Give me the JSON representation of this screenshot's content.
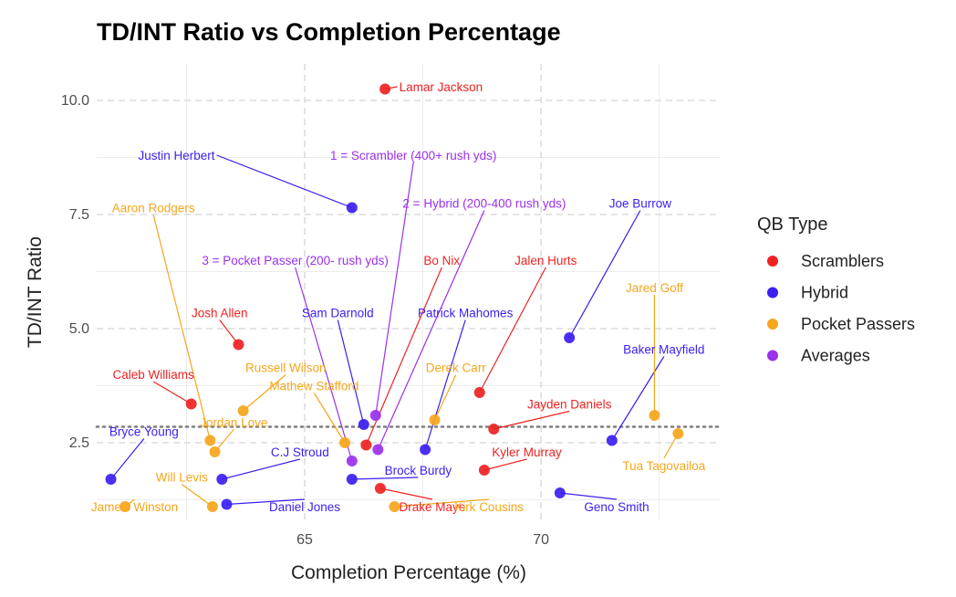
{
  "chart_data": {
    "type": "scatter",
    "title": "TD/INT Ratio vs Completion Percentage",
    "xlabel": "Completion Percentage (%)",
    "ylabel": "TD/INT Ratio",
    "xlim": [
      60.6,
      73.8
    ],
    "ylim": [
      0.8,
      10.8
    ],
    "x_ticks": [
      65,
      70
    ],
    "x_tick_labels": [
      "65",
      "70"
    ],
    "y_ticks": [
      2.5,
      5.0,
      7.5,
      10.0
    ],
    "y_tick_labels": [
      "2.5",
      "5.0",
      "7.5",
      "10.0"
    ],
    "grid": true,
    "reference_line": {
      "y": 2.85,
      "style": "dotted"
    },
    "legend": {
      "title": "QB Type",
      "position": "right",
      "items": [
        {
          "label": "Scramblers",
          "color": "#ee2222"
        },
        {
          "label": "Hybrid",
          "color": "#3b1ff0"
        },
        {
          "label": "Pocket Passers",
          "color": "#f5a61b"
        },
        {
          "label": "Averages",
          "color": "#9b30ee"
        }
      ]
    },
    "groups": {
      "Scramblers": "#ee2222",
      "Hybrid": "#3b1ff0",
      "Pocket Passers": "#f5a61b",
      "Averages": "#9b30ee"
    },
    "points": [
      {
        "label": "Lamar Jackson",
        "group": "Scramblers",
        "x": 66.7,
        "y": 10.25,
        "lx": 67.0,
        "ly": 10.3,
        "anchor": "start"
      },
      {
        "label": "Josh Allen",
        "group": "Scramblers",
        "x": 63.6,
        "y": 4.65,
        "lx": 63.2,
        "ly": 5.35,
        "anchor": "middle"
      },
      {
        "label": "Caleb Williams",
        "group": "Scramblers",
        "x": 62.6,
        "y": 3.35,
        "lx": 61.8,
        "ly": 4.0,
        "anchor": "middle"
      },
      {
        "label": "Jalen Hurts",
        "group": "Scramblers",
        "x": 68.7,
        "y": 3.6,
        "lx": 70.1,
        "ly": 6.5,
        "anchor": "middle"
      },
      {
        "label": "Jayden Daniels",
        "group": "Scramblers",
        "x": 69.0,
        "y": 2.8,
        "lx": 70.6,
        "ly": 3.35,
        "anchor": "middle"
      },
      {
        "label": "Bo Nix",
        "group": "Scramblers",
        "x": 66.3,
        "y": 2.45,
        "lx": 67.9,
        "ly": 6.5,
        "anchor": "middle"
      },
      {
        "label": "Kyler Murray",
        "group": "Scramblers",
        "x": 68.8,
        "y": 1.9,
        "lx": 69.7,
        "ly": 2.3,
        "anchor": "middle"
      },
      {
        "label": "Drake Maye",
        "group": "Scramblers",
        "x": 66.6,
        "y": 1.5,
        "lx": 67.7,
        "ly": 1.1,
        "anchor": "middle"
      },
      {
        "label": "Justin Herbert",
        "group": "Hybrid",
        "x": 66.0,
        "y": 7.65,
        "lx": 63.1,
        "ly": 8.8,
        "anchor": "end"
      },
      {
        "label": "Joe Burrow",
        "group": "Hybrid",
        "x": 70.6,
        "y": 4.8,
        "lx": 72.1,
        "ly": 7.75,
        "anchor": "middle"
      },
      {
        "label": "Sam Darnold",
        "group": "Hybrid",
        "x": 66.25,
        "y": 2.9,
        "lx": 65.7,
        "ly": 5.35,
        "anchor": "middle"
      },
      {
        "label": "Patrick Mahomes",
        "group": "Hybrid",
        "x": 67.55,
        "y": 2.35,
        "lx": 68.4,
        "ly": 5.35,
        "anchor": "middle"
      },
      {
        "label": "Baker Mayfield",
        "group": "Hybrid",
        "x": 71.5,
        "y": 2.55,
        "lx": 72.6,
        "ly": 4.55,
        "anchor": "middle"
      },
      {
        "label": "Bryce Young",
        "group": "Hybrid",
        "x": 60.9,
        "y": 1.7,
        "lx": 61.6,
        "ly": 2.75,
        "anchor": "middle"
      },
      {
        "label": "C.J Stroud",
        "group": "Hybrid",
        "x": 63.25,
        "y": 1.7,
        "lx": 64.9,
        "ly": 2.3,
        "anchor": "middle"
      },
      {
        "label": "Brock Burdy",
        "group": "Hybrid",
        "x": 66.0,
        "y": 1.7,
        "lx": 67.4,
        "ly": 1.9,
        "anchor": "middle"
      },
      {
        "label": "Daniel Jones",
        "group": "Hybrid",
        "x": 63.35,
        "y": 1.15,
        "lx": 65.0,
        "ly": 1.1,
        "anchor": "middle"
      },
      {
        "label": "Geno Smith",
        "group": "Hybrid",
        "x": 70.4,
        "y": 1.4,
        "lx": 71.6,
        "ly": 1.1,
        "anchor": "middle"
      },
      {
        "label": "Aaron Rodgers",
        "group": "Pocket Passers",
        "x": 63.0,
        "y": 2.55,
        "lx": 61.8,
        "ly": 7.65,
        "anchor": "middle"
      },
      {
        "label": "Jared Goff",
        "group": "Pocket Passers",
        "x": 72.4,
        "y": 3.1,
        "lx": 72.4,
        "ly": 5.9,
        "anchor": "middle"
      },
      {
        "label": "Russell Wilson",
        "group": "Pocket Passers",
        "x": 63.7,
        "y": 3.2,
        "lx": 64.6,
        "ly": 4.15,
        "anchor": "middle"
      },
      {
        "label": "Mathew Stafford",
        "group": "Pocket Passers",
        "x": 65.85,
        "y": 2.5,
        "lx": 65.2,
        "ly": 3.75,
        "anchor": "middle"
      },
      {
        "label": "Derek Carr",
        "group": "Pocket Passers",
        "x": 67.75,
        "y": 3.0,
        "lx": 68.2,
        "ly": 4.15,
        "anchor": "middle"
      },
      {
        "label": "Jordan Love",
        "group": "Pocket Passers",
        "x": 63.1,
        "y": 2.3,
        "lx": 63.5,
        "ly": 2.95,
        "anchor": "middle"
      },
      {
        "label": "Tua Tagovailoa",
        "group": "Pocket Passers",
        "x": 72.9,
        "y": 2.7,
        "lx": 72.6,
        "ly": 2.0,
        "anchor": "middle"
      },
      {
        "label": "Will Levis",
        "group": "Pocket Passers",
        "x": 63.05,
        "y": 1.1,
        "lx": 62.4,
        "ly": 1.75,
        "anchor": "middle"
      },
      {
        "label": "Jameis Winston",
        "group": "Pocket Passers",
        "x": 61.2,
        "y": 1.1,
        "lx": 61.4,
        "ly": 1.1,
        "anchor": "middle"
      },
      {
        "label": "Kirk Cousins",
        "group": "Pocket Passers",
        "x": 66.9,
        "y": 1.1,
        "lx": 68.9,
        "ly": 1.1,
        "anchor": "middle"
      },
      {
        "label": "1 = Scrambler (400+ rush yds)",
        "group": "Averages",
        "x": 66.5,
        "y": 3.1,
        "lx": 67.3,
        "ly": 8.8,
        "anchor": "middle"
      },
      {
        "label": "2 = Hybrid (200-400 rush yds)",
        "group": "Averages",
        "x": 66.55,
        "y": 2.35,
        "lx": 68.8,
        "ly": 7.75,
        "anchor": "middle"
      },
      {
        "label": "3 = Pocket Passer (200- rush yds)",
        "group": "Averages",
        "x": 66.0,
        "y": 2.1,
        "lx": 64.8,
        "ly": 6.5,
        "anchor": "middle"
      }
    ]
  }
}
